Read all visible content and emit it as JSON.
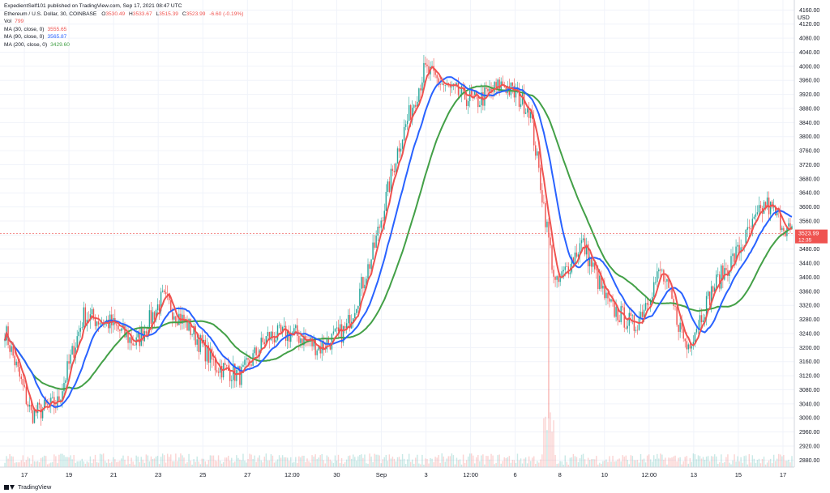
{
  "header": {
    "publish_line": "ExpedientSelf101 published on TradingView.com, Sep 17, 2021 08:47 UTC",
    "symbol": "Ethereum / U.S. Dollar, 30, COINBASE",
    "ohlc": [
      {
        "label": "O",
        "value": "3530.49"
      },
      {
        "label": "H",
        "value": "3533.67"
      },
      {
        "label": "L",
        "value": "3515.39"
      },
      {
        "label": "C",
        "value": "3523.99"
      }
    ],
    "change": "-6.60 (-0.19%)",
    "indicators": [
      {
        "label": "Vol",
        "value": "799",
        "color": "#ef5350"
      },
      {
        "label": "MA (30, close, 0)",
        "value": "3555.65",
        "color": "#ef5350"
      },
      {
        "label": "MA (90, close, 0)",
        "value": "3565.87",
        "color": "#2962ff"
      },
      {
        "label": "MA (200, close, 0)",
        "value": "3429.60",
        "color": "#43a047"
      }
    ]
  },
  "price_axis": {
    "currency": "USD",
    "ticks": [
      "4160.00",
      "4120.00",
      "4080.00",
      "4040.00",
      "4000.00",
      "3960.00",
      "3920.00",
      "3880.00",
      "3840.00",
      "3800.00",
      "3760.00",
      "3720.00",
      "3680.00",
      "3640.00",
      "3600.00",
      "3560.00",
      "3520.00",
      "3480.00",
      "3440.00",
      "3400.00",
      "3360.00",
      "3320.00",
      "3280.00",
      "3240.00",
      "3200.00",
      "3160.00",
      "3120.00",
      "3080.00",
      "3040.00",
      "3000.00",
      "2960.00",
      "2920.00",
      "2880.00"
    ],
    "last_price": "3523.99",
    "countdown": "12:35",
    "label_color": "#ef5350"
  },
  "time_axis": {
    "labels": [
      "17",
      "19",
      "21",
      "23",
      "25",
      "27",
      "12:00",
      "30",
      "Sep",
      "3",
      "12:00",
      "6",
      "8",
      "10",
      "12:00",
      "13",
      "15",
      "17"
    ]
  },
  "footer": {
    "brand": "TradingView"
  },
  "colors": {
    "up": "#26a69a",
    "down": "#ef5350",
    "ma30": "#ef5350",
    "ma90": "#2962ff",
    "ma200": "#43a047"
  },
  "chart_data": {
    "type": "line",
    "title": "Ethereum / U.S. Dollar, 30, COINBASE",
    "candle_interval_minutes": 30,
    "x": [
      "17",
      "18",
      "19",
      "20",
      "21",
      "22",
      "23",
      "24",
      "25",
      "26",
      "27",
      "28",
      "29",
      "30",
      "Sep",
      "2",
      "3",
      "4",
      "5",
      "6",
      "7",
      "8",
      "9",
      "10",
      "11",
      "12",
      "13",
      "14",
      "15",
      "16",
      "17"
    ],
    "close_series": [
      3250,
      3010,
      3040,
      3290,
      3270,
      3210,
      3340,
      3260,
      3150,
      3120,
      3230,
      3240,
      3200,
      3250,
      3460,
      3770,
      3990,
      3930,
      3900,
      3950,
      3880,
      3370,
      3500,
      3320,
      3260,
      3420,
      3200,
      3370,
      3480,
      3610,
      3524
    ],
    "series": [
      {
        "name": "MA (30, close, 0)",
        "last": 3555.65
      },
      {
        "name": "MA (90, close, 0)",
        "last": 3565.87
      },
      {
        "name": "MA (200, close, 0)",
        "last": 3429.6
      }
    ],
    "ylim": [
      2860,
      4170
    ],
    "volume_last": 799,
    "grid": true
  }
}
